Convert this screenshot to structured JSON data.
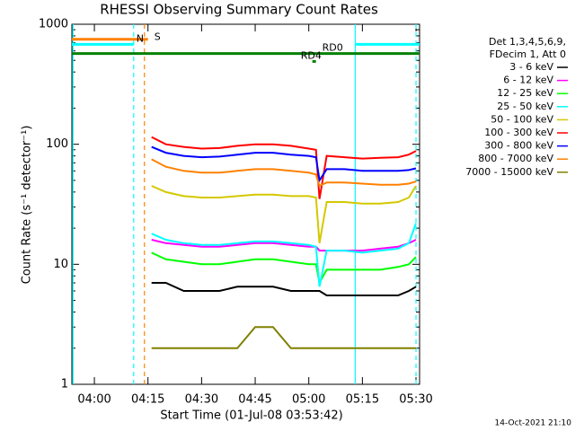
{
  "chart_data": {
    "type": "line",
    "title": "RHESSI Observing Summary Count Rates",
    "x_label": "Start Time (01-Jul-08 03:53:42)",
    "y_label": "Count Rate (s⁻¹ detector⁻¹)",
    "footer": "14-Oct-2021 21:10",
    "legend_title": [
      "Det 1,3,4,5,6,9,",
      "FDecim 1, Att 0"
    ],
    "log_y": true,
    "xlim": [
      "03:53:42",
      "05:31"
    ],
    "xticks": [
      "04:00",
      "04:15",
      "04:30",
      "04:45",
      "05:00",
      "05:15",
      "05:30"
    ],
    "ylim": [
      1,
      1000
    ],
    "yticks": [
      1,
      10,
      100,
      1000
    ],
    "x": [
      "04:16",
      "04:20",
      "04:25",
      "04:30",
      "04:35",
      "04:40",
      "04:45",
      "04:50",
      "04:55",
      "05:00",
      "05:02",
      "05:03",
      "05:05",
      "05:10",
      "05:15",
      "05:20",
      "05:25",
      "05:28",
      "05:30"
    ],
    "series": [
      {
        "name": "3 - 6 keV",
        "color": "#000000",
        "values": [
          7,
          7,
          6,
          6,
          6,
          6.5,
          6.5,
          6.5,
          6,
          6,
          6,
          6,
          5.5,
          5.5,
          5.5,
          5.5,
          5.5,
          6,
          6.5
        ]
      },
      {
        "name": "6 - 12 keV",
        "color": "#ff00ff",
        "values": [
          16,
          15,
          14.5,
          14,
          14,
          14.5,
          15,
          15,
          14.5,
          14,
          14,
          13,
          13,
          13,
          13,
          13.5,
          14,
          15,
          16
        ]
      },
      {
        "name": "12 - 25 keV",
        "color": "#00ff00",
        "values": [
          12.5,
          11,
          10.5,
          10,
          10,
          10.5,
          11,
          11,
          10.5,
          10,
          10,
          7,
          9,
          9,
          9,
          9,
          9.5,
          10,
          11.5
        ]
      },
      {
        "name": "25 - 50 keV",
        "color": "#00ffff",
        "values": [
          18,
          16,
          15,
          14.5,
          14.5,
          15,
          15.5,
          15.5,
          15,
          14.5,
          14,
          6.5,
          13,
          13,
          12.5,
          13,
          13.5,
          15,
          22
        ]
      },
      {
        "name": "50 - 100 keV",
        "color": "#d4c800",
        "values": [
          45,
          40,
          37,
          36,
          36,
          37,
          38,
          38,
          37,
          37,
          36,
          15,
          33,
          33,
          32,
          32,
          33,
          36,
          45
        ]
      },
      {
        "name": "100 - 300 keV",
        "color": "#ff0000",
        "values": [
          115,
          100,
          95,
          92,
          93,
          97,
          100,
          100,
          97,
          92,
          90,
          35,
          80,
          78,
          76,
          77,
          78,
          82,
          88
        ]
      },
      {
        "name": "300 - 800 keV",
        "color": "#0000ff",
        "values": [
          95,
          85,
          80,
          78,
          79,
          82,
          85,
          85,
          82,
          80,
          78,
          50,
          62,
          62,
          60,
          60,
          60,
          61,
          63
        ]
      },
      {
        "name": "800 - 7000 keV",
        "color": "#ff8000",
        "values": [
          75,
          65,
          60,
          58,
          58,
          60,
          62,
          62,
          60,
          58,
          56,
          45,
          48,
          48,
          47,
          46,
          46,
          47,
          49
        ]
      },
      {
        "name": "7000 - 15000 keV",
        "color": "#808000",
        "values": [
          2,
          2,
          2,
          2,
          2,
          2,
          3,
          3,
          2,
          2,
          2,
          2,
          2,
          2,
          2,
          2,
          2,
          2,
          2
        ]
      }
    ],
    "flags": [
      {
        "label": "S",
        "color": "#ff8000",
        "value": 750,
        "x": [
          "03:53:42",
          "04:15"
        ],
        "label_at": "04:16"
      },
      {
        "label": "N",
        "color": "#00ffff",
        "value": 680,
        "x": [
          "03:53:42",
          "04:11"
        ],
        "label_at": "04:11"
      },
      {
        "color": "#00ffff",
        "value": 680,
        "x": [
          "05:13",
          "05:31"
        ]
      },
      {
        "label": "RD0",
        "color": "#008000",
        "value": 570,
        "x": [
          "03:53:42",
          "05:31"
        ],
        "label_at": "05:03"
      },
      {
        "label": "RD4",
        "color": "#008000",
        "value": 490,
        "x": [
          "05:01",
          "05:02"
        ],
        "label_at": "04:57"
      }
    ],
    "vlines": [
      {
        "x": "03:54",
        "color": "#00ffff",
        "dash": false
      },
      {
        "x": "04:11",
        "color": "#00ffff",
        "dash": true
      },
      {
        "x": "04:14",
        "color": "#ff8000",
        "dash": true
      },
      {
        "x": "05:13",
        "color": "#00ffff",
        "dash": false
      },
      {
        "x": "05:30",
        "color": "#00ffff",
        "dash": true
      }
    ]
  }
}
